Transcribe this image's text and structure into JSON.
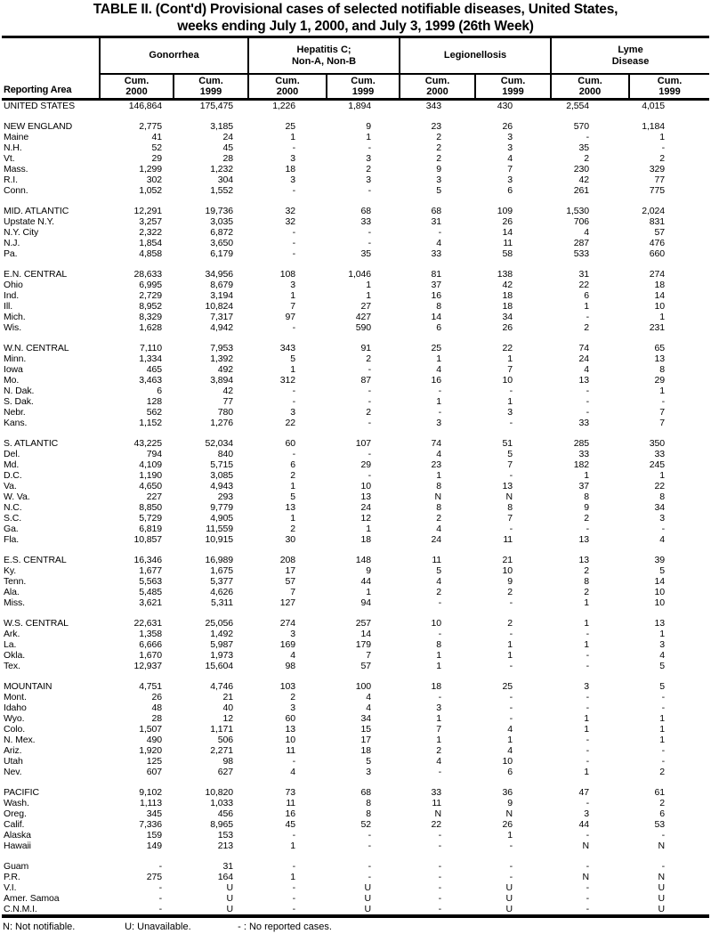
{
  "title": {
    "line1": "TABLE II. (Cont'd) Provisional cases of selected notifiable diseases, United States,",
    "line2": "weeks ending July 1, 2000, and July 3, 1999 (26th Week)"
  },
  "table": {
    "header": {
      "reporting_area": "Reporting Area",
      "groups": [
        {
          "name": "Gonorrhea"
        },
        {
          "name": "Hepatitis C;\nNon-A, Non-B"
        },
        {
          "name": "Legionellosis"
        },
        {
          "name": "Lyme\nDisease"
        }
      ],
      "subcols": {
        "cum_2000": "Cum.\n2000",
        "cum_1999": "Cum.\n1999"
      }
    },
    "columns_per_group": [
      "Cum. 2000",
      "Cum. 1999"
    ],
    "rows": [
      {
        "area": "UNITED STATES",
        "values": [
          "146,864",
          "175,475",
          "1,226",
          "1,894",
          "343",
          "430",
          "2,554",
          "4,015"
        ]
      },
      {
        "area": "NEW ENGLAND",
        "gap": true,
        "values": [
          "2,775",
          "3,185",
          "25",
          "9",
          "23",
          "26",
          "570",
          "1,184"
        ]
      },
      {
        "area": "Maine",
        "values": [
          "41",
          "24",
          "1",
          "1",
          "2",
          "3",
          "-",
          "1"
        ]
      },
      {
        "area": "N.H.",
        "values": [
          "52",
          "45",
          "-",
          "-",
          "2",
          "3",
          "35",
          "-"
        ]
      },
      {
        "area": "Vt.",
        "values": [
          "29",
          "28",
          "3",
          "3",
          "2",
          "4",
          "2",
          "2"
        ]
      },
      {
        "area": "Mass.",
        "values": [
          "1,299",
          "1,232",
          "18",
          "2",
          "9",
          "7",
          "230",
          "329"
        ]
      },
      {
        "area": "R.I.",
        "values": [
          "302",
          "304",
          "3",
          "3",
          "3",
          "3",
          "42",
          "77"
        ]
      },
      {
        "area": "Conn.",
        "values": [
          "1,052",
          "1,552",
          "-",
          "-",
          "5",
          "6",
          "261",
          "775"
        ]
      },
      {
        "area": "MID. ATLANTIC",
        "gap": true,
        "values": [
          "12,291",
          "19,736",
          "32",
          "68",
          "68",
          "109",
          "1,530",
          "2,024"
        ]
      },
      {
        "area": "Upstate N.Y.",
        "values": [
          "3,257",
          "3,035",
          "32",
          "33",
          "31",
          "26",
          "706",
          "831"
        ]
      },
      {
        "area": "N.Y. City",
        "values": [
          "2,322",
          "6,872",
          "-",
          "-",
          "-",
          "14",
          "4",
          "57"
        ]
      },
      {
        "area": "N.J.",
        "values": [
          "1,854",
          "3,650",
          "-",
          "-",
          "4",
          "11",
          "287",
          "476"
        ]
      },
      {
        "area": "Pa.",
        "values": [
          "4,858",
          "6,179",
          "-",
          "35",
          "33",
          "58",
          "533",
          "660"
        ]
      },
      {
        "area": "E.N. CENTRAL",
        "gap": true,
        "values": [
          "28,633",
          "34,956",
          "108",
          "1,046",
          "81",
          "138",
          "31",
          "274"
        ]
      },
      {
        "area": "Ohio",
        "values": [
          "6,995",
          "8,679",
          "3",
          "1",
          "37",
          "42",
          "22",
          "18"
        ]
      },
      {
        "area": "Ind.",
        "values": [
          "2,729",
          "3,194",
          "1",
          "1",
          "16",
          "18",
          "6",
          "14"
        ]
      },
      {
        "area": "Ill.",
        "values": [
          "8,952",
          "10,824",
          "7",
          "27",
          "8",
          "18",
          "1",
          "10"
        ]
      },
      {
        "area": "Mich.",
        "values": [
          "8,329",
          "7,317",
          "97",
          "427",
          "14",
          "34",
          "-",
          "1"
        ]
      },
      {
        "area": "Wis.",
        "values": [
          "1,628",
          "4,942",
          "-",
          "590",
          "6",
          "26",
          "2",
          "231"
        ]
      },
      {
        "area": "W.N. CENTRAL",
        "gap": true,
        "values": [
          "7,110",
          "7,953",
          "343",
          "91",
          "25",
          "22",
          "74",
          "65"
        ]
      },
      {
        "area": "Minn.",
        "values": [
          "1,334",
          "1,392",
          "5",
          "2",
          "1",
          "1",
          "24",
          "13"
        ]
      },
      {
        "area": "Iowa",
        "values": [
          "465",
          "492",
          "1",
          "-",
          "4",
          "7",
          "4",
          "8"
        ]
      },
      {
        "area": "Mo.",
        "values": [
          "3,463",
          "3,894",
          "312",
          "87",
          "16",
          "10",
          "13",
          "29"
        ]
      },
      {
        "area": "N. Dak.",
        "values": [
          "6",
          "42",
          "-",
          "-",
          "-",
          "-",
          "-",
          "1"
        ]
      },
      {
        "area": "S. Dak.",
        "values": [
          "128",
          "77",
          "-",
          "-",
          "1",
          "1",
          "-",
          "-"
        ]
      },
      {
        "area": "Nebr.",
        "values": [
          "562",
          "780",
          "3",
          "2",
          "-",
          "3",
          "-",
          "7"
        ]
      },
      {
        "area": "Kans.",
        "values": [
          "1,152",
          "1,276",
          "22",
          "-",
          "3",
          "-",
          "33",
          "7"
        ]
      },
      {
        "area": "S. ATLANTIC",
        "gap": true,
        "values": [
          "43,225",
          "52,034",
          "60",
          "107",
          "74",
          "51",
          "285",
          "350"
        ]
      },
      {
        "area": "Del.",
        "values": [
          "794",
          "840",
          "-",
          "-",
          "4",
          "5",
          "33",
          "33"
        ]
      },
      {
        "area": "Md.",
        "values": [
          "4,109",
          "5,715",
          "6",
          "29",
          "23",
          "7",
          "182",
          "245"
        ]
      },
      {
        "area": "D.C.",
        "values": [
          "1,190",
          "3,085",
          "2",
          "-",
          "1",
          "-",
          "1",
          "1"
        ]
      },
      {
        "area": "Va.",
        "values": [
          "4,650",
          "4,943",
          "1",
          "10",
          "8",
          "13",
          "37",
          "22"
        ]
      },
      {
        "area": "W. Va.",
        "values": [
          "227",
          "293",
          "5",
          "13",
          "N",
          "N",
          "8",
          "8"
        ]
      },
      {
        "area": "N.C.",
        "values": [
          "8,850",
          "9,779",
          "13",
          "24",
          "8",
          "8",
          "9",
          "34"
        ]
      },
      {
        "area": "S.C.",
        "values": [
          "5,729",
          "4,905",
          "1",
          "12",
          "2",
          "7",
          "2",
          "3"
        ]
      },
      {
        "area": "Ga.",
        "values": [
          "6,819",
          "11,559",
          "2",
          "1",
          "4",
          "-",
          "-",
          "-"
        ]
      },
      {
        "area": "Fla.",
        "values": [
          "10,857",
          "10,915",
          "30",
          "18",
          "24",
          "11",
          "13",
          "4"
        ]
      },
      {
        "area": "E.S. CENTRAL",
        "gap": true,
        "values": [
          "16,346",
          "16,989",
          "208",
          "148",
          "11",
          "21",
          "13",
          "39"
        ]
      },
      {
        "area": "Ky.",
        "values": [
          "1,677",
          "1,675",
          "17",
          "9",
          "5",
          "10",
          "2",
          "5"
        ]
      },
      {
        "area": "Tenn.",
        "values": [
          "5,563",
          "5,377",
          "57",
          "44",
          "4",
          "9",
          "8",
          "14"
        ]
      },
      {
        "area": "Ala.",
        "values": [
          "5,485",
          "4,626",
          "7",
          "1",
          "2",
          "2",
          "2",
          "10"
        ]
      },
      {
        "area": "Miss.",
        "values": [
          "3,621",
          "5,311",
          "127",
          "94",
          "-",
          "-",
          "1",
          "10"
        ]
      },
      {
        "area": "W.S. CENTRAL",
        "gap": true,
        "values": [
          "22,631",
          "25,056",
          "274",
          "257",
          "10",
          "2",
          "1",
          "13"
        ]
      },
      {
        "area": "Ark.",
        "values": [
          "1,358",
          "1,492",
          "3",
          "14",
          "-",
          "-",
          "-",
          "1"
        ]
      },
      {
        "area": "La.",
        "values": [
          "6,666",
          "5,987",
          "169",
          "179",
          "8",
          "1",
          "1",
          "3"
        ]
      },
      {
        "area": "Okla.",
        "values": [
          "1,670",
          "1,973",
          "4",
          "7",
          "1",
          "1",
          "-",
          "4"
        ]
      },
      {
        "area": "Tex.",
        "values": [
          "12,937",
          "15,604",
          "98",
          "57",
          "1",
          "-",
          "-",
          "5"
        ]
      },
      {
        "area": "MOUNTAIN",
        "gap": true,
        "values": [
          "4,751",
          "4,746",
          "103",
          "100",
          "18",
          "25",
          "3",
          "5"
        ]
      },
      {
        "area": "Mont.",
        "values": [
          "26",
          "21",
          "2",
          "4",
          "-",
          "-",
          "-",
          "-"
        ]
      },
      {
        "area": "Idaho",
        "values": [
          "48",
          "40",
          "3",
          "4",
          "3",
          "-",
          "-",
          "-"
        ]
      },
      {
        "area": "Wyo.",
        "values": [
          "28",
          "12",
          "60",
          "34",
          "1",
          "-",
          "1",
          "1"
        ]
      },
      {
        "area": "Colo.",
        "values": [
          "1,507",
          "1,171",
          "13",
          "15",
          "7",
          "4",
          "1",
          "1"
        ]
      },
      {
        "area": "N. Mex.",
        "values": [
          "490",
          "506",
          "10",
          "17",
          "1",
          "1",
          "-",
          "1"
        ]
      },
      {
        "area": "Ariz.",
        "values": [
          "1,920",
          "2,271",
          "11",
          "18",
          "2",
          "4",
          "-",
          "-"
        ]
      },
      {
        "area": "Utah",
        "values": [
          "125",
          "98",
          "-",
          "5",
          "4",
          "10",
          "-",
          "-"
        ]
      },
      {
        "area": "Nev.",
        "values": [
          "607",
          "627",
          "4",
          "3",
          "-",
          "6",
          "1",
          "2"
        ]
      },
      {
        "area": "PACIFIC",
        "gap": true,
        "values": [
          "9,102",
          "10,820",
          "73",
          "68",
          "33",
          "36",
          "47",
          "61"
        ]
      },
      {
        "area": "Wash.",
        "values": [
          "1,113",
          "1,033",
          "11",
          "8",
          "11",
          "9",
          "-",
          "2"
        ]
      },
      {
        "area": "Oreg.",
        "values": [
          "345",
          "456",
          "16",
          "8",
          "N",
          "N",
          "3",
          "6"
        ]
      },
      {
        "area": "Calif.",
        "values": [
          "7,336",
          "8,965",
          "45",
          "52",
          "22",
          "26",
          "44",
          "53"
        ]
      },
      {
        "area": "Alaska",
        "values": [
          "159",
          "153",
          "-",
          "-",
          "-",
          "1",
          "-",
          "-"
        ]
      },
      {
        "area": "Hawaii",
        "values": [
          "149",
          "213",
          "1",
          "-",
          "-",
          "-",
          "N",
          "N"
        ]
      },
      {
        "area": "Guam",
        "gap": true,
        "values": [
          "-",
          "31",
          "-",
          "-",
          "-",
          "-",
          "-",
          "-"
        ]
      },
      {
        "area": "P.R.",
        "values": [
          "275",
          "164",
          "1",
          "-",
          "-",
          "-",
          "N",
          "N"
        ]
      },
      {
        "area": "V.I.",
        "values": [
          "-",
          "U",
          "-",
          "U",
          "-",
          "U",
          "-",
          "U"
        ]
      },
      {
        "area": "Amer. Samoa",
        "values": [
          "-",
          "U",
          "-",
          "U",
          "-",
          "U",
          "-",
          "U"
        ]
      },
      {
        "area": "C.N.M.I.",
        "values": [
          "-",
          "U",
          "-",
          "U",
          "-",
          "U",
          "-",
          "U"
        ]
      }
    ]
  },
  "footnote": {
    "n": "N: Not notifiable.",
    "u": "U: Unavailable.",
    "dash": "- : No reported cases."
  }
}
